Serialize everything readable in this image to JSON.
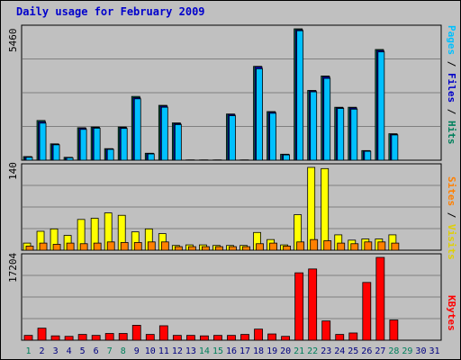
{
  "title": "Daily usage for February 2009",
  "colors": {
    "hits": "#00805c",
    "files": "#0000c8",
    "pages": "#00c0ff",
    "visits": "#ffff00",
    "sites": "#ff8000",
    "kbytes": "#ff0000",
    "weekend_day": "#00805c",
    "weekday": "#000080"
  },
  "chart_data": [
    {
      "type": "bar",
      "name": "hits-files-pages",
      "ymax_label": "5460",
      "ylim": [
        0,
        5460
      ],
      "right_label": {
        "pages": "Pages",
        "files": "Files",
        "hits": "Hits",
        "sep": " / "
      },
      "categories": [
        "1",
        "2",
        "3",
        "4",
        "5",
        "6",
        "7",
        "8",
        "9",
        "10",
        "11",
        "12",
        "13",
        "14",
        "15",
        "16",
        "17",
        "18",
        "19",
        "20",
        "21",
        "22",
        "23",
        "24",
        "25",
        "26",
        "27",
        "28",
        "29",
        "30",
        "31"
      ],
      "series": [
        {
          "name": "Hits",
          "values": [
            150,
            1650,
            680,
            120,
            1350,
            1380,
            480,
            1380,
            2650,
            290,
            2280,
            1550,
            10,
            10,
            10,
            1920,
            10,
            3900,
            2020,
            250,
            5460,
            2900,
            3500,
            2200,
            2200,
            400,
            4600,
            1100,
            0,
            0,
            0
          ]
        },
        {
          "name": "Files",
          "values": [
            140,
            1600,
            660,
            110,
            1330,
            1360,
            470,
            1350,
            2600,
            280,
            2250,
            1520,
            8,
            8,
            8,
            1900,
            8,
            3880,
            2000,
            240,
            5420,
            2880,
            3470,
            2180,
            2170,
            390,
            4560,
            1080,
            0,
            0,
            0
          ]
        },
        {
          "name": "Pages",
          "values": [
            120,
            1540,
            640,
            100,
            1280,
            1330,
            450,
            1320,
            2550,
            260,
            2200,
            1480,
            6,
            6,
            6,
            1850,
            6,
            3800,
            1950,
            220,
            5380,
            2840,
            3400,
            2150,
            2120,
            370,
            4500,
            1050,
            0,
            0,
            0
          ]
        }
      ]
    },
    {
      "type": "bar",
      "name": "visits-sites",
      "ymax_label": "140",
      "ylim": [
        0,
        140
      ],
      "right_label": {
        "sites": "Sites",
        "visits": "Visits",
        "sep": " / "
      },
      "categories": [
        "1",
        "2",
        "3",
        "4",
        "5",
        "6",
        "7",
        "8",
        "9",
        "10",
        "11",
        "12",
        "13",
        "14",
        "15",
        "16",
        "17",
        "18",
        "19",
        "20",
        "21",
        "22",
        "23",
        "24",
        "25",
        "26",
        "27",
        "28",
        "29",
        "30",
        "31"
      ],
      "series": [
        {
          "name": "Visits",
          "values": [
            12,
            32,
            36,
            25,
            52,
            54,
            63,
            59,
            31,
            36,
            28,
            8,
            9,
            9,
            8,
            8,
            8,
            30,
            18,
            9,
            60,
            140,
            138,
            26,
            17,
            19,
            19,
            26,
            0,
            0,
            0
          ]
        },
        {
          "name": "Sites",
          "values": [
            7,
            12,
            10,
            12,
            11,
            12,
            14,
            13,
            13,
            14,
            14,
            6,
            6,
            6,
            6,
            6,
            6,
            11,
            12,
            7,
            14,
            18,
            16,
            12,
            11,
            14,
            14,
            12,
            0,
            0,
            0
          ]
        }
      ]
    },
    {
      "type": "bar",
      "name": "kbytes",
      "ymax_label": "17204",
      "ylim": [
        0,
        17204
      ],
      "right_label": {
        "kbytes": "KBytes"
      },
      "categories": [
        "1",
        "2",
        "3",
        "4",
        "5",
        "6",
        "7",
        "8",
        "9",
        "10",
        "11",
        "12",
        "13",
        "14",
        "15",
        "16",
        "17",
        "18",
        "19",
        "20",
        "21",
        "22",
        "23",
        "24",
        "25",
        "26",
        "27",
        "28",
        "29",
        "30",
        "31"
      ],
      "series": [
        {
          "name": "KBytes",
          "values": [
            1000,
            2500,
            900,
            800,
            1200,
            1000,
            1400,
            1400,
            3100,
            1200,
            3000,
            1000,
            1000,
            900,
            1000,
            1000,
            1200,
            2300,
            1300,
            800,
            14000,
            14800,
            4000,
            1200,
            1500,
            12000,
            17204,
            4200,
            0,
            0,
            0
          ]
        }
      ]
    }
  ],
  "x_axis": {
    "labels": [
      "1",
      "2",
      "3",
      "4",
      "5",
      "6",
      "7",
      "8",
      "9",
      "10",
      "11",
      "12",
      "13",
      "14",
      "15",
      "16",
      "17",
      "18",
      "19",
      "20",
      "21",
      "22",
      "23",
      "24",
      "25",
      "26",
      "27",
      "28",
      "29",
      "30",
      "31"
    ],
    "weekend": [
      1,
      7,
      8,
      14,
      15,
      21,
      22,
      28,
      29
    ]
  }
}
